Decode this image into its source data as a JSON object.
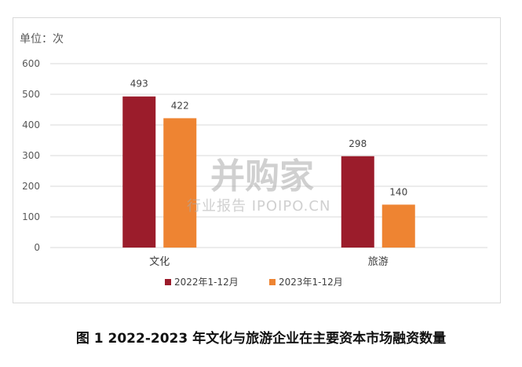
{
  "chart_data": {
    "type": "bar",
    "unit_label": "单位：次",
    "categories": [
      "文化",
      "旅游"
    ],
    "series": [
      {
        "name": "2022年1-12月",
        "values": [
          493,
          298
        ],
        "color": "#9b1c2b"
      },
      {
        "name": "2023年1-12月",
        "values": [
          422,
          140
        ],
        "color": "#ee8432"
      }
    ],
    "ylim": [
      0,
      600
    ],
    "yticks": [
      0,
      100,
      200,
      300,
      400,
      500,
      600
    ],
    "grid": true,
    "legend_position": "bottom"
  },
  "watermark": {
    "main": "并购家",
    "sub": "行业报告 IPOIPO.CN"
  },
  "caption": "图 1 2022-2023 年文化与旅游企业在主要资本市场融资数量"
}
